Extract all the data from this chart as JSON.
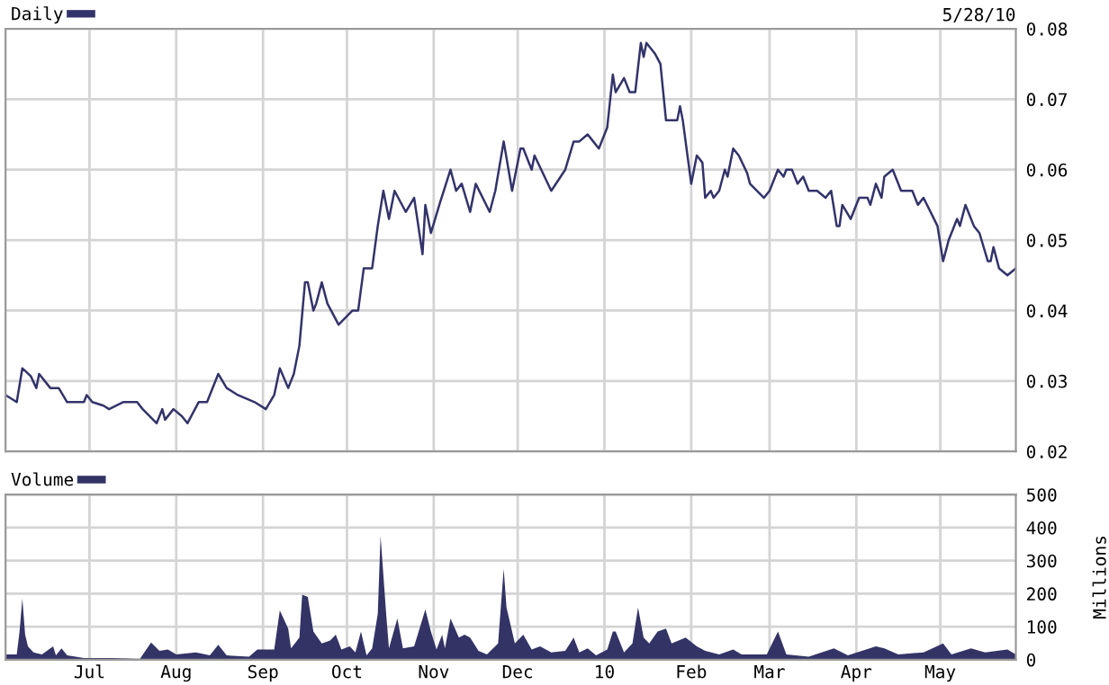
{
  "chart_data": [
    {
      "type": "line",
      "legend": "top left",
      "grid": true,
      "tick_labels": "y",
      "annotations": [
        "5/28/10"
      ],
      "xlim": [
        "2009-06-01",
        "2010-05-28"
      ],
      "xticks": [
        "2009-07-01",
        "2009-08-01",
        "2009-09-01",
        "2009-10-01",
        "2009-11-01",
        "2009-12-01",
        "2010-01-01",
        "2010-02-01",
        "2010-03-01",
        "2010-04-01",
        "2010-05-01"
      ],
      "ylim": [
        0.02,
        0.08
      ],
      "yticks": [
        0.02,
        0.03,
        0.04,
        0.05,
        0.06,
        0.07,
        0.08
      ],
      "series": [
        {
          "name": "Daily",
          "color": "#33336b",
          "x": [
            "2009-06-01",
            "2009-06-05",
            "2009-06-07",
            "2009-06-10",
            "2009-06-12",
            "2009-06-13",
            "2009-06-17",
            "2009-06-20",
            "2009-06-23",
            "2009-06-29",
            "2009-06-30",
            "2009-07-02",
            "2009-07-06",
            "2009-07-08",
            "2009-07-13",
            "2009-07-18",
            "2009-07-20",
            "2009-07-25",
            "2009-07-27",
            "2009-07-28",
            "2009-07-31",
            "2009-08-03",
            "2009-08-05",
            "2009-08-09",
            "2009-08-12",
            "2009-08-16",
            "2009-08-19",
            "2009-08-23",
            "2009-08-29",
            "2009-09-02",
            "2009-09-05",
            "2009-09-07",
            "2009-09-10",
            "2009-09-12",
            "2009-09-14",
            "2009-09-16",
            "2009-09-17",
            "2009-09-19",
            "2009-09-20",
            "2009-09-22",
            "2009-09-24",
            "2009-09-28",
            "2009-10-03",
            "2009-10-05",
            "2009-10-07",
            "2009-10-10",
            "2009-10-12",
            "2009-10-14",
            "2009-10-16",
            "2009-10-18",
            "2009-10-22",
            "2009-10-25",
            "2009-10-28",
            "2009-10-29",
            "2009-10-31",
            "2009-11-03",
            "2009-11-07",
            "2009-11-09",
            "2009-11-11",
            "2009-11-14",
            "2009-11-16",
            "2009-11-21",
            "2009-11-23",
            "2009-11-26",
            "2009-11-29",
            "2009-12-02",
            "2009-12-03",
            "2009-12-06",
            "2009-12-07",
            "2009-12-13",
            "2009-12-18",
            "2009-12-21",
            "2009-12-23",
            "2009-12-26",
            "2009-12-28",
            "2009-12-30",
            "2009-12-31",
            "2010-01-02",
            "2010-01-04",
            "2010-01-05",
            "2010-01-08",
            "2010-01-10",
            "2010-01-12",
            "2010-01-14",
            "2010-01-15",
            "2010-01-16",
            "2010-01-19",
            "2010-01-21",
            "2010-01-23",
            "2010-01-25",
            "2010-01-27",
            "2010-01-28",
            "2010-01-29",
            "2010-02-01",
            "2010-02-03",
            "2010-02-05",
            "2010-02-06",
            "2010-02-08",
            "2010-02-09",
            "2010-02-11",
            "2010-02-13",
            "2010-02-14",
            "2010-02-16",
            "2010-02-18",
            "2010-02-21",
            "2010-02-22",
            "2010-02-27",
            "2010-03-01",
            "2010-03-04",
            "2010-03-06",
            "2010-03-07",
            "2010-03-09",
            "2010-03-11",
            "2010-03-13",
            "2010-03-15",
            "2010-03-18",
            "2010-03-21",
            "2010-03-23",
            "2010-03-25",
            "2010-03-26",
            "2010-03-27",
            "2010-03-30",
            "2010-04-02",
            "2010-04-05",
            "2010-04-06",
            "2010-04-08",
            "2010-04-10",
            "2010-04-11",
            "2010-04-14",
            "2010-04-17",
            "2010-04-21",
            "2010-04-23",
            "2010-04-25",
            "2010-04-30",
            "2010-05-02",
            "2010-05-04",
            "2010-05-07",
            "2010-05-08",
            "2010-05-10",
            "2010-05-11",
            "2010-05-13",
            "2010-05-15",
            "2010-05-18",
            "2010-05-19",
            "2010-05-20",
            "2010-05-22",
            "2010-05-25",
            "2010-05-28"
          ],
          "values": [
            0.028,
            0.027,
            0.0318,
            0.0307,
            0.029,
            0.031,
            0.029,
            0.029,
            0.027,
            0.027,
            0.028,
            0.027,
            0.0265,
            0.026,
            0.027,
            0.027,
            0.026,
            0.024,
            0.026,
            0.0245,
            0.026,
            0.025,
            0.024,
            0.027,
            0.027,
            0.031,
            0.029,
            0.028,
            0.027,
            0.026,
            0.028,
            0.0318,
            0.029,
            0.031,
            0.035,
            0.044,
            0.044,
            0.04,
            0.041,
            0.044,
            0.041,
            0.038,
            0.04,
            0.04,
            0.046,
            0.046,
            0.052,
            0.057,
            0.053,
            0.057,
            0.054,
            0.056,
            0.048,
            0.055,
            0.051,
            0.055,
            0.06,
            0.057,
            0.058,
            0.054,
            0.058,
            0.054,
            0.057,
            0.064,
            0.057,
            0.063,
            0.063,
            0.06,
            0.062,
            0.057,
            0.06,
            0.064,
            0.064,
            0.065,
            0.064,
            0.063,
            0.064,
            0.066,
            0.0735,
            0.071,
            0.073,
            0.071,
            0.071,
            0.078,
            0.076,
            0.078,
            0.0765,
            0.075,
            0.067,
            0.067,
            0.067,
            0.069,
            0.067,
            0.058,
            0.062,
            0.061,
            0.056,
            0.057,
            0.056,
            0.057,
            0.06,
            0.059,
            0.063,
            0.062,
            0.0595,
            0.058,
            0.056,
            0.057,
            0.06,
            0.059,
            0.06,
            0.06,
            0.058,
            0.059,
            0.057,
            0.057,
            0.056,
            0.057,
            0.052,
            0.052,
            0.055,
            0.053,
            0.056,
            0.056,
            0.055,
            0.058,
            0.056,
            0.059,
            0.06,
            0.057,
            0.057,
            0.055,
            0.056,
            0.052,
            0.047,
            0.05,
            0.053,
            0.052,
            0.055,
            0.054,
            0.052,
            0.051,
            0.047,
            0.047,
            0.049,
            0.046,
            0.045,
            0.046
          ]
        }
      ]
    },
    {
      "type": "area",
      "legend": "top left",
      "grid": true,
      "ylabel": "Millions",
      "xlim": [
        "2009-06-01",
        "2010-05-28"
      ],
      "xticks": [
        {
          "value": "2009-07-01",
          "label": "Jul"
        },
        {
          "value": "2009-08-01",
          "label": "Aug"
        },
        {
          "value": "2009-09-01",
          "label": "Sep"
        },
        {
          "value": "2009-10-01",
          "label": "Oct"
        },
        {
          "value": "2009-11-01",
          "label": "Nov"
        },
        {
          "value": "2009-12-01",
          "label": "Dec"
        },
        {
          "value": "2010-01-01",
          "label": "10"
        },
        {
          "value": "2010-02-01",
          "label": "Feb"
        },
        {
          "value": "2010-03-01",
          "label": "Mar"
        },
        {
          "value": "2010-04-01",
          "label": "Apr"
        },
        {
          "value": "2010-05-01",
          "label": "May"
        }
      ],
      "ylim": [
        0,
        500
      ],
      "yticks": [
        0,
        100,
        200,
        300,
        400,
        500
      ],
      "series": [
        {
          "name": "Volume",
          "color": "#333366",
          "x": [
            "2009-06-01",
            "2009-06-05",
            "2009-06-06",
            "2009-06-07",
            "2009-06-08",
            "2009-06-09",
            "2009-06-11",
            "2009-06-14",
            "2009-06-18",
            "2009-06-19",
            "2009-06-21",
            "2009-06-23",
            "2009-06-29",
            "2009-07-09",
            "2009-07-19",
            "2009-07-23",
            "2009-07-26",
            "2009-07-29",
            "2009-08-01",
            "2009-08-08",
            "2009-08-13",
            "2009-08-16",
            "2009-08-19",
            "2009-08-27",
            "2009-08-30",
            "2009-09-05",
            "2009-09-07",
            "2009-09-10",
            "2009-09-11",
            "2009-09-14",
            "2009-09-15",
            "2009-09-17",
            "2009-09-19",
            "2009-09-22",
            "2009-09-25",
            "2009-09-27",
            "2009-09-29",
            "2009-10-02",
            "2009-10-04",
            "2009-10-06",
            "2009-10-08",
            "2009-10-10",
            "2009-10-12",
            "2009-10-13",
            "2009-10-15",
            "2009-10-16",
            "2009-10-19",
            "2009-10-21",
            "2009-10-25",
            "2009-10-29",
            "2009-10-31",
            "2009-11-02",
            "2009-11-04",
            "2009-11-05",
            "2009-11-07",
            "2009-11-10",
            "2009-11-12",
            "2009-11-14",
            "2009-11-17",
            "2009-11-20",
            "2009-11-24",
            "2009-11-26",
            "2009-11-27",
            "2009-11-30",
            "2009-12-03",
            "2009-12-06",
            "2009-12-09",
            "2009-12-13",
            "2009-12-18",
            "2009-12-21",
            "2009-12-23",
            "2009-12-26",
            "2009-12-29",
            "2010-01-02",
            "2010-01-04",
            "2010-01-05",
            "2010-01-08",
            "2010-01-11",
            "2010-01-13",
            "2010-01-15",
            "2010-01-17",
            "2010-01-20",
            "2010-01-23",
            "2010-01-25",
            "2010-01-30",
            "2010-02-03",
            "2010-02-06",
            "2010-02-11",
            "2010-02-16",
            "2010-02-19",
            "2010-02-28",
            "2010-03-04",
            "2010-03-07",
            "2010-03-15",
            "2010-03-24",
            "2010-03-29",
            "2010-04-08",
            "2010-04-11",
            "2010-04-16",
            "2010-04-25",
            "2010-05-02",
            "2010-05-05",
            "2010-05-12",
            "2010-05-17",
            "2010-05-25",
            "2010-05-28"
          ],
          "values": [
            16,
            16,
            85,
            185,
            76,
            40,
            22,
            16,
            40,
            13,
            34,
            13,
            5,
            5,
            2,
            52,
            27,
            31,
            16,
            22,
            13,
            45,
            13,
            9,
            31,
            31,
            149,
            94,
            34,
            67,
            197,
            190,
            85,
            49,
            58,
            76,
            31,
            40,
            22,
            85,
            13,
            34,
            139,
            375,
            139,
            34,
            125,
            34,
            40,
            152,
            85,
            31,
            76,
            34,
            125,
            67,
            76,
            67,
            27,
            16,
            49,
            275,
            158,
            49,
            76,
            31,
            40,
            22,
            27,
            67,
            22,
            34,
            13,
            31,
            85,
            85,
            22,
            49,
            158,
            67,
            49,
            85,
            94,
            49,
            67,
            40,
            27,
            16,
            31,
            16,
            16,
            85,
            16,
            9,
            34,
            13,
            40,
            34,
            16,
            22,
            49,
            16,
            34,
            22,
            31,
            16
          ]
        }
      ]
    }
  ]
}
